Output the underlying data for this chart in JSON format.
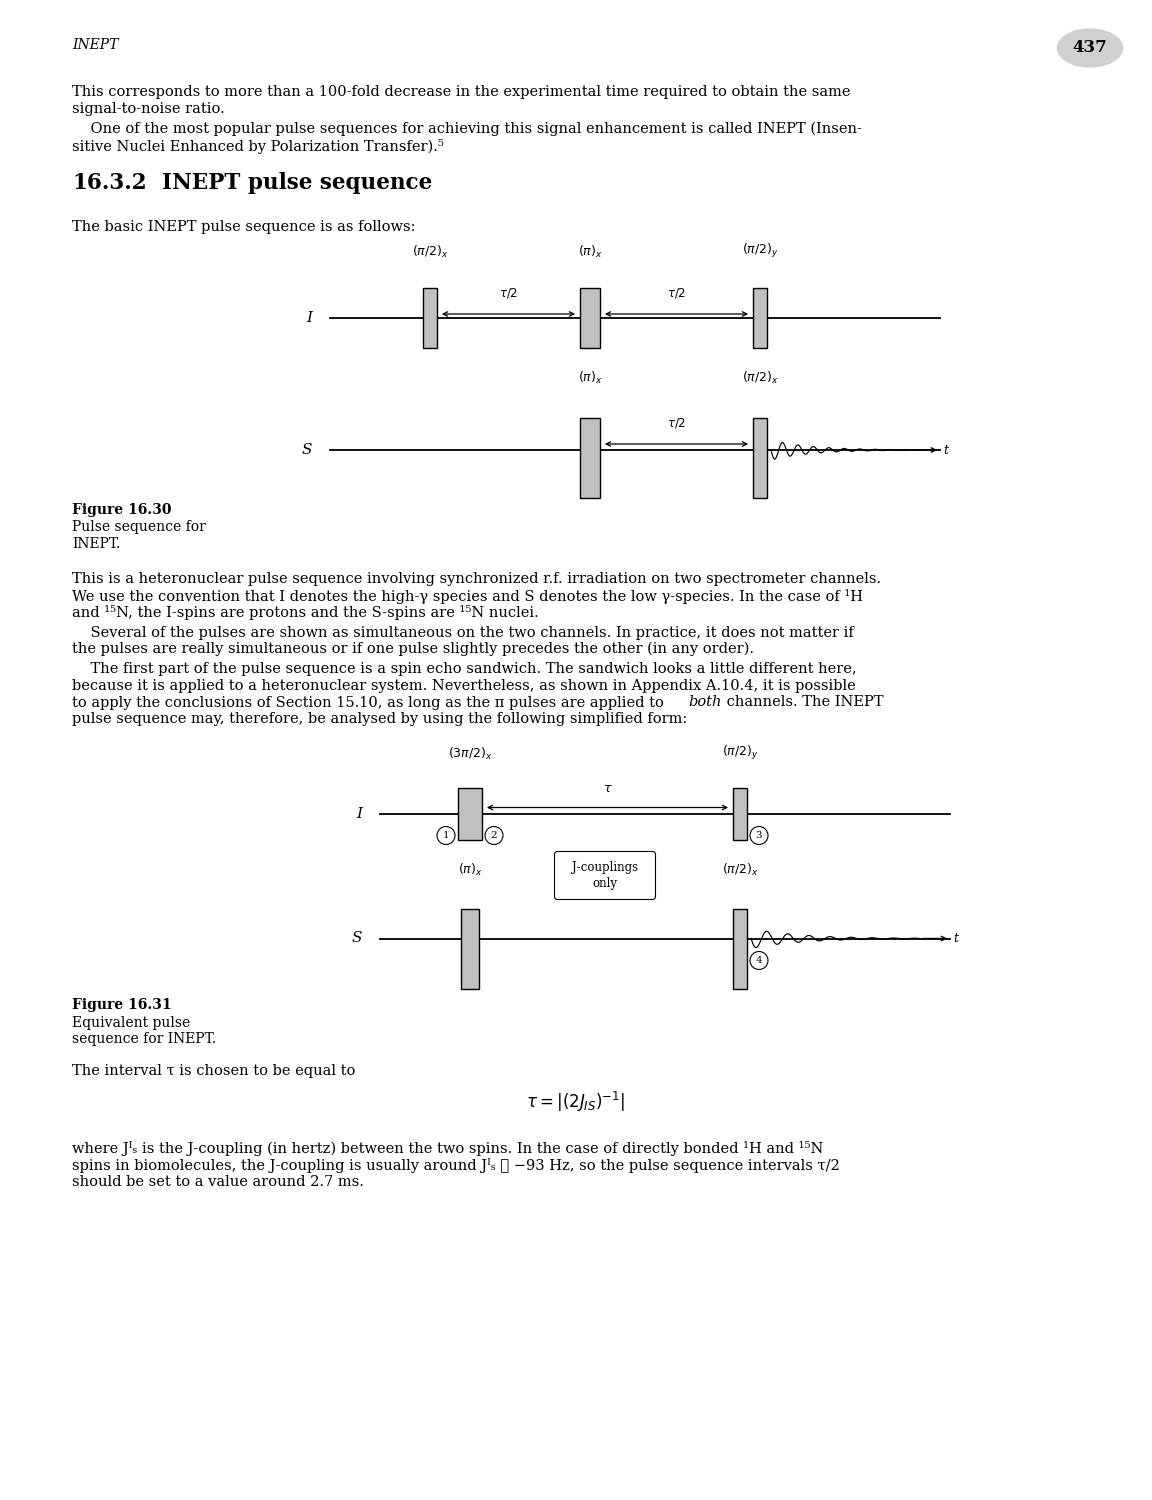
{
  "page_number": "437",
  "header_italic": "INEPT",
  "section_title": "16.3.2   INEPT pulse sequence",
  "bg_color": "#ffffff",
  "text_color": "#000000",
  "pulse_fill": "#c0c0c0",
  "pulse_edge": "#000000",
  "line_color": "#000000"
}
